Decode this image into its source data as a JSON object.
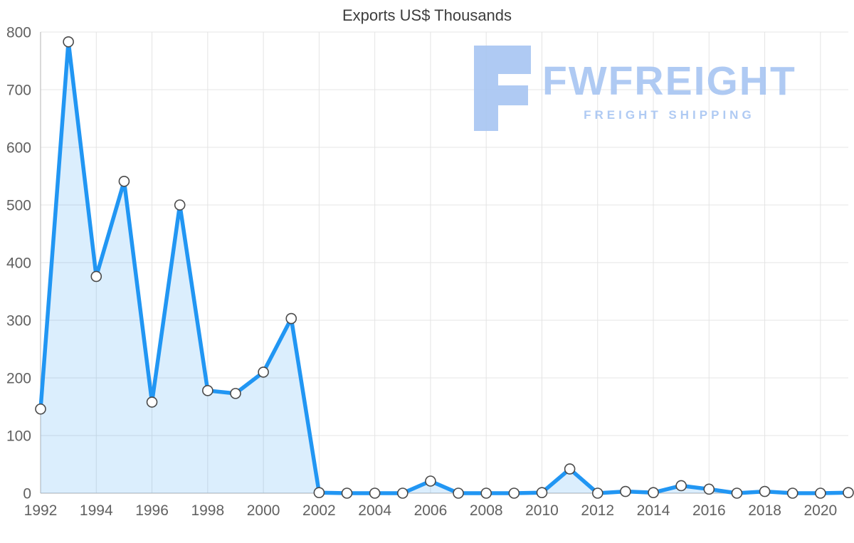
{
  "chart_data": {
    "type": "area",
    "title": "Exports US$ Thousands",
    "x": [
      1992,
      1993,
      1994,
      1995,
      1996,
      1997,
      1998,
      1999,
      2000,
      2001,
      2002,
      2003,
      2004,
      2005,
      2006,
      2007,
      2008,
      2009,
      2010,
      2011,
      2012,
      2013,
      2014,
      2015,
      2016,
      2017,
      2018,
      2019,
      2020,
      2021
    ],
    "values": [
      146,
      783,
      376,
      541,
      158,
      500,
      178,
      173,
      210,
      303,
      1,
      0,
      0,
      0,
      21,
      0,
      0,
      0,
      1,
      42,
      0,
      3,
      1,
      13,
      7,
      0,
      3,
      0,
      0,
      1
    ],
    "xlabel": "",
    "ylabel": "",
    "xlim": [
      1992,
      2021
    ],
    "ylim": [
      0,
      800
    ],
    "yticks": [
      0,
      100,
      200,
      300,
      400,
      500,
      600,
      700,
      800
    ],
    "xticks": [
      1992,
      1994,
      1996,
      1998,
      2000,
      2002,
      2004,
      2006,
      2008,
      2010,
      2012,
      2014,
      2016,
      2018,
      2020
    ],
    "grid": true,
    "legend": "none",
    "line_color": "#2196f3",
    "fill_color": "rgba(33,150,243,0.16)",
    "marker_fill": "#ffffff",
    "marker_stroke": "#4a4a4a",
    "grid_color": "#e4e4e4",
    "axis_color": "#c0c0c0",
    "tick_color": "#616161"
  },
  "watermark": {
    "brand": "FWFREIGHT",
    "tagline": "FREIGHT SHIPPING",
    "color": "#a9c6f2"
  }
}
